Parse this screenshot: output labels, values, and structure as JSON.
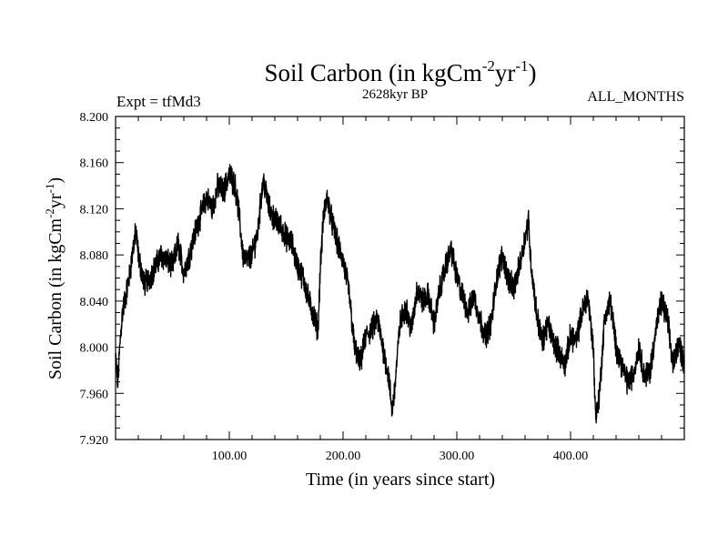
{
  "chart_data": {
    "type": "line",
    "title": {
      "main": "Soil Carbon (in kgCm",
      "sup1": "-2",
      "mid": "yr",
      "sup2": "-1",
      "end": ")"
    },
    "subtitle": "2628kyr BP",
    "expt_label": "Expt = tfMd3",
    "months_label": "ALL_MONTHS",
    "xlabel": "Time (in years since start)",
    "ylabel": {
      "main": "Soil Carbon (in kgCm",
      "sup1": "-2",
      "mid": "yr",
      "sup2": "-1",
      "end": ")"
    },
    "xlim": [
      0,
      500
    ],
    "ylim": [
      7.92,
      8.2
    ],
    "x_ticks": [
      100,
      200,
      300,
      400
    ],
    "x_tick_labels": [
      "100.00",
      "200.00",
      "300.00",
      "400.00"
    ],
    "y_ticks": [
      7.92,
      7.96,
      8.0,
      8.04,
      8.08,
      8.12,
      8.16,
      8.2
    ],
    "y_tick_labels": [
      "7.920",
      "7.960",
      "8.000",
      "8.040",
      "8.080",
      "8.120",
      "8.160",
      "8.200"
    ],
    "series": [
      {
        "name": "Soil Carbon",
        "color": "#000000",
        "x": [
          0,
          2,
          4,
          6,
          8,
          10,
          12,
          14,
          16,
          18,
          20,
          25,
          30,
          35,
          40,
          45,
          50,
          55,
          60,
          65,
          70,
          75,
          80,
          85,
          90,
          95,
          100,
          105,
          108,
          110,
          112,
          115,
          120,
          125,
          128,
          130,
          135,
          140,
          145,
          150,
          155,
          160,
          165,
          170,
          175,
          178,
          180,
          183,
          186,
          190,
          195,
          200,
          205,
          210,
          215,
          220,
          225,
          230,
          235,
          240,
          243,
          245,
          250,
          255,
          260,
          265,
          270,
          275,
          280,
          285,
          290,
          295,
          300,
          305,
          310,
          315,
          320,
          325,
          330,
          335,
          340,
          345,
          350,
          355,
          360,
          363,
          365,
          370,
          375,
          380,
          385,
          390,
          395,
          400,
          405,
          410,
          415,
          420,
          422,
          425,
          430,
          435,
          440,
          445,
          450,
          455,
          460,
          465,
          470,
          475,
          480,
          485,
          490,
          495,
          500
        ],
        "y": [
          7.99,
          7.97,
          8.005,
          8.03,
          8.04,
          8.05,
          8.06,
          8.075,
          8.09,
          8.1,
          8.08,
          8.055,
          8.06,
          8.07,
          8.08,
          8.075,
          8.07,
          8.09,
          8.065,
          8.08,
          8.1,
          8.115,
          8.13,
          8.12,
          8.14,
          8.135,
          8.15,
          8.14,
          8.12,
          8.1,
          8.08,
          8.075,
          8.08,
          8.1,
          8.13,
          8.145,
          8.12,
          8.11,
          8.105,
          8.095,
          8.09,
          8.07,
          8.06,
          8.04,
          8.025,
          8.015,
          8.07,
          8.115,
          8.13,
          8.11,
          8.09,
          8.075,
          8.05,
          8.0,
          7.985,
          8.01,
          8.015,
          8.025,
          8.0,
          7.975,
          7.945,
          7.96,
          8.02,
          8.035,
          8.015,
          8.05,
          8.04,
          8.045,
          8.02,
          8.05,
          8.07,
          8.085,
          8.06,
          8.045,
          8.03,
          8.045,
          8.025,
          8.01,
          8.02,
          8.06,
          8.08,
          8.06,
          8.05,
          8.07,
          8.095,
          8.11,
          8.075,
          8.03,
          8.005,
          8.02,
          8.005,
          7.995,
          7.985,
          8.01,
          8.005,
          8.03,
          8.045,
          8.0,
          7.94,
          7.955,
          8.025,
          8.04,
          8.0,
          7.985,
          7.97,
          7.975,
          8.0,
          7.975,
          7.98,
          8.015,
          8.04,
          8.025,
          7.985,
          8.005,
          7.985
        ]
      }
    ]
  }
}
